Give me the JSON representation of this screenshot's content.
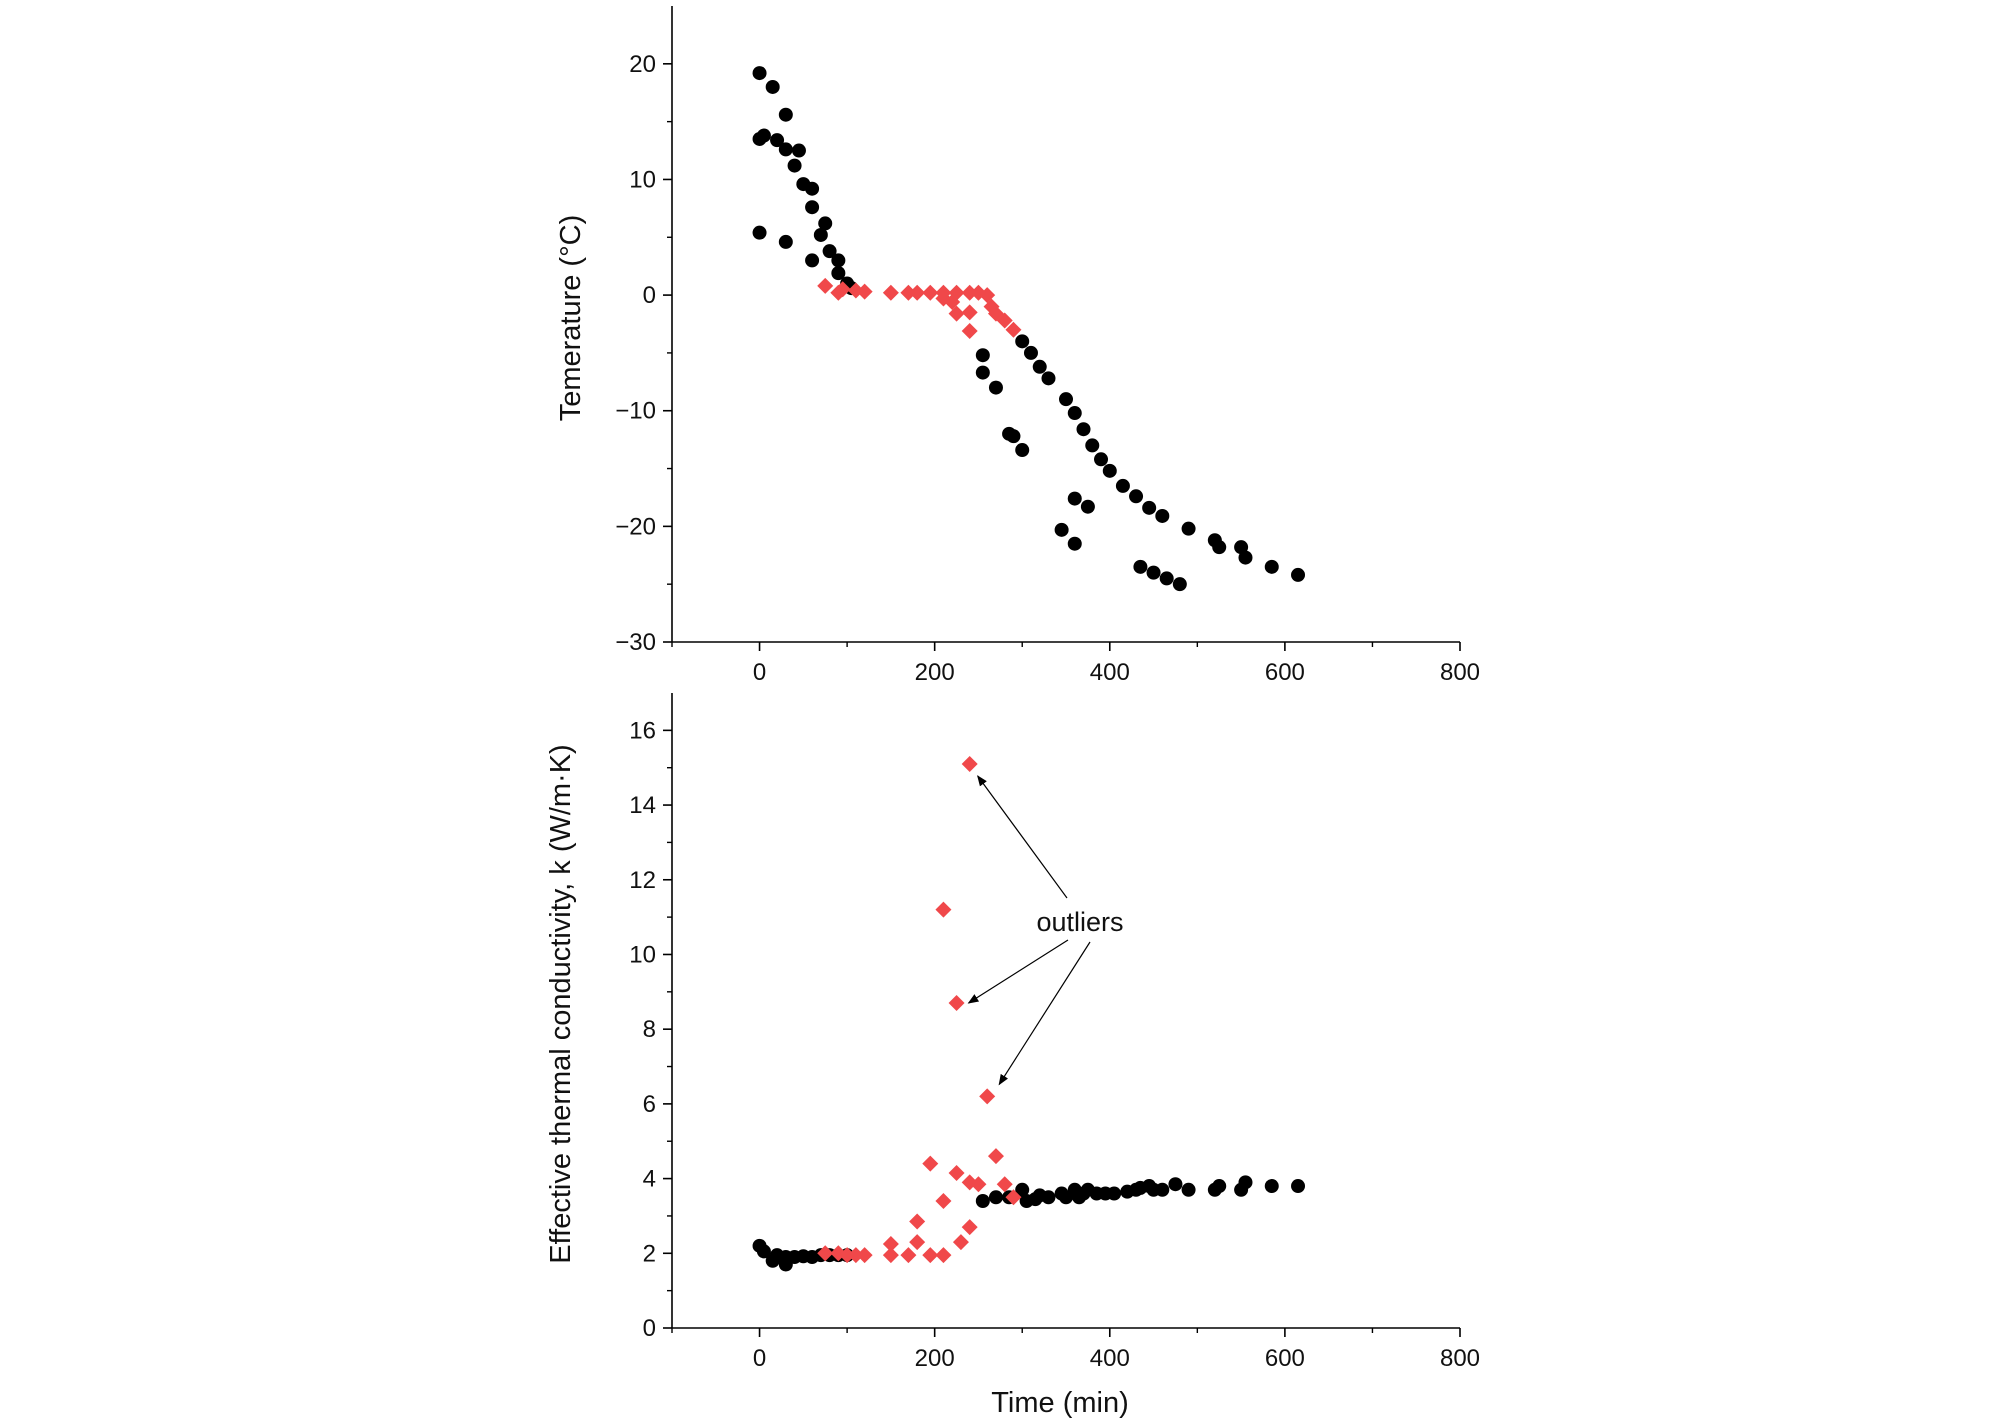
{
  "figure": {
    "panel_top": {
      "ylabel": "Temerature (°C)",
      "xlabel": ""
    },
    "panel_bottom": {
      "ylabel": "Effective thermal conductivity, k (W/m·K)",
      "xlabel": "Time (min)",
      "annotation": "outliers"
    }
  },
  "chart_data": [
    {
      "type": "scatter",
      "title": "",
      "xlabel": "",
      "ylabel": "Temerature (°C)",
      "xlim": [
        -100,
        800
      ],
      "ylim": [
        -30,
        25
      ],
      "xticks": [
        0,
        200,
        400,
        600,
        800
      ],
      "yticks": [
        -30,
        -20,
        -10,
        0,
        10,
        20
      ],
      "grid": false,
      "legend": "none",
      "colors": {
        "black_series": "#000000",
        "red_series": "#f0484a"
      },
      "series": [
        {
          "marker": "circle",
          "color": "#000000",
          "points": [
            [
              0,
              19.2
            ],
            [
              15,
              18.0
            ],
            [
              30,
              15.6
            ],
            [
              0,
              13.5
            ],
            [
              5,
              13.8
            ],
            [
              20,
              13.4
            ],
            [
              30,
              12.6
            ],
            [
              45,
              12.5
            ],
            [
              40,
              11.2
            ],
            [
              50,
              9.6
            ],
            [
              60,
              9.2
            ],
            [
              60,
              7.6
            ],
            [
              75,
              6.2
            ],
            [
              70,
              5.2
            ],
            [
              0,
              5.4
            ],
            [
              30,
              4.6
            ],
            [
              80,
              3.8
            ],
            [
              90,
              3.0
            ],
            [
              60,
              3.0
            ],
            [
              90,
              1.9
            ],
            [
              100,
              1.0
            ],
            [
              105,
              0.6
            ],
            [
              255,
              -5.2
            ],
            [
              255,
              -6.7
            ],
            [
              270,
              -8.0
            ],
            [
              285,
              -12.0
            ],
            [
              290,
              -12.2
            ],
            [
              300,
              -13.4
            ],
            [
              300,
              -4.0
            ],
            [
              310,
              -5.0
            ],
            [
              320,
              -6.2
            ],
            [
              330,
              -7.2
            ],
            [
              350,
              -9.0
            ],
            [
              360,
              -10.2
            ],
            [
              370,
              -11.6
            ],
            [
              380,
              -13.0
            ],
            [
              390,
              -14.2
            ],
            [
              400,
              -15.2
            ],
            [
              415,
              -16.5
            ],
            [
              430,
              -17.4
            ],
            [
              445,
              -18.4
            ],
            [
              460,
              -19.1
            ],
            [
              490,
              -20.2
            ],
            [
              520,
              -21.2
            ],
            [
              525,
              -21.8
            ],
            [
              550,
              -21.8
            ],
            [
              555,
              -22.7
            ],
            [
              585,
              -23.5
            ],
            [
              615,
              -24.2
            ],
            [
              360,
              -17.6
            ],
            [
              375,
              -18.3
            ],
            [
              345,
              -20.3
            ],
            [
              360,
              -21.5
            ],
            [
              435,
              -23.5
            ],
            [
              450,
              -24.0
            ],
            [
              465,
              -24.5
            ],
            [
              480,
              -25.0
            ]
          ]
        },
        {
          "marker": "diamond",
          "color": "#f0484a",
          "points": [
            [
              75,
              0.8
            ],
            [
              90,
              0.2
            ],
            [
              95,
              0.5
            ],
            [
              110,
              0.4
            ],
            [
              120,
              0.3
            ],
            [
              150,
              0.2
            ],
            [
              170,
              0.2
            ],
            [
              180,
              0.2
            ],
            [
              195,
              0.2
            ],
            [
              210,
              0.2
            ],
            [
              225,
              0.2
            ],
            [
              240,
              0.2
            ],
            [
              250,
              0.2
            ],
            [
              260,
              0.0
            ],
            [
              210,
              -0.3
            ],
            [
              220,
              -0.6
            ],
            [
              225,
              -1.6
            ],
            [
              240,
              -1.5
            ],
            [
              240,
              -3.1
            ],
            [
              265,
              -1.0
            ],
            [
              270,
              -1.6
            ],
            [
              280,
              -2.2
            ],
            [
              290,
              -3.0
            ]
          ]
        }
      ]
    },
    {
      "type": "scatter",
      "title": "",
      "xlabel": "Time (min)",
      "ylabel": "Effective thermal conductivity, k (W/m·K)",
      "xlim": [
        -100,
        800
      ],
      "ylim": [
        0,
        17
      ],
      "xticks": [
        0,
        200,
        400,
        600,
        800
      ],
      "yticks": [
        0,
        2,
        4,
        6,
        8,
        10,
        12,
        14,
        16
      ],
      "grid": false,
      "legend": "none",
      "annotations": [
        {
          "text": "outliers",
          "arrows_to": [
            [
              240,
              15.1
            ],
            [
              225,
              8.7
            ],
            [
              260,
              6.2
            ]
          ]
        }
      ],
      "series": [
        {
          "marker": "circle",
          "color": "#000000",
          "points": [
            [
              0,
              2.2
            ],
            [
              5,
              2.05
            ],
            [
              15,
              1.8
            ],
            [
              20,
              1.95
            ],
            [
              30,
              1.7
            ],
            [
              30,
              1.9
            ],
            [
              40,
              1.9
            ],
            [
              50,
              1.92
            ],
            [
              60,
              1.9
            ],
            [
              70,
              1.95
            ],
            [
              80,
              1.95
            ],
            [
              90,
              1.95
            ],
            [
              100,
              1.95
            ],
            [
              255,
              3.4
            ],
            [
              270,
              3.5
            ],
            [
              285,
              3.5
            ],
            [
              300,
              3.7
            ],
            [
              305,
              3.4
            ],
            [
              315,
              3.45
            ],
            [
              320,
              3.55
            ],
            [
              330,
              3.5
            ],
            [
              345,
              3.6
            ],
            [
              350,
              3.5
            ],
            [
              360,
              3.7
            ],
            [
              365,
              3.5
            ],
            [
              370,
              3.6
            ],
            [
              375,
              3.7
            ],
            [
              385,
              3.6
            ],
            [
              395,
              3.6
            ],
            [
              405,
              3.6
            ],
            [
              420,
              3.65
            ],
            [
              430,
              3.7
            ],
            [
              435,
              3.75
            ],
            [
              445,
              3.8
            ],
            [
              450,
              3.7
            ],
            [
              460,
              3.7
            ],
            [
              475,
              3.85
            ],
            [
              490,
              3.7
            ],
            [
              520,
              3.7
            ],
            [
              525,
              3.8
            ],
            [
              550,
              3.7
            ],
            [
              555,
              3.9
            ],
            [
              585,
              3.8
            ],
            [
              615,
              3.8
            ]
          ]
        },
        {
          "marker": "diamond",
          "color": "#f0484a",
          "points": [
            [
              75,
              2.0
            ],
            [
              90,
              2.0
            ],
            [
              100,
              1.95
            ],
            [
              110,
              1.95
            ],
            [
              120,
              1.95
            ],
            [
              150,
              1.95
            ],
            [
              150,
              2.25
            ],
            [
              170,
              1.95
            ],
            [
              180,
              2.3
            ],
            [
              180,
              2.85
            ],
            [
              195,
              1.95
            ],
            [
              195,
              4.4
            ],
            [
              210,
              1.95
            ],
            [
              210,
              3.4
            ],
            [
              225,
              4.15
            ],
            [
              230,
              2.3
            ],
            [
              240,
              2.7
            ],
            [
              240,
              3.9
            ],
            [
              250,
              3.85
            ],
            [
              270,
              4.6
            ],
            [
              280,
              3.85
            ],
            [
              290,
              3.5
            ],
            [
              240,
              15.1
            ],
            [
              210,
              11.2
            ],
            [
              225,
              8.7
            ],
            [
              260,
              6.2
            ]
          ]
        }
      ]
    }
  ]
}
